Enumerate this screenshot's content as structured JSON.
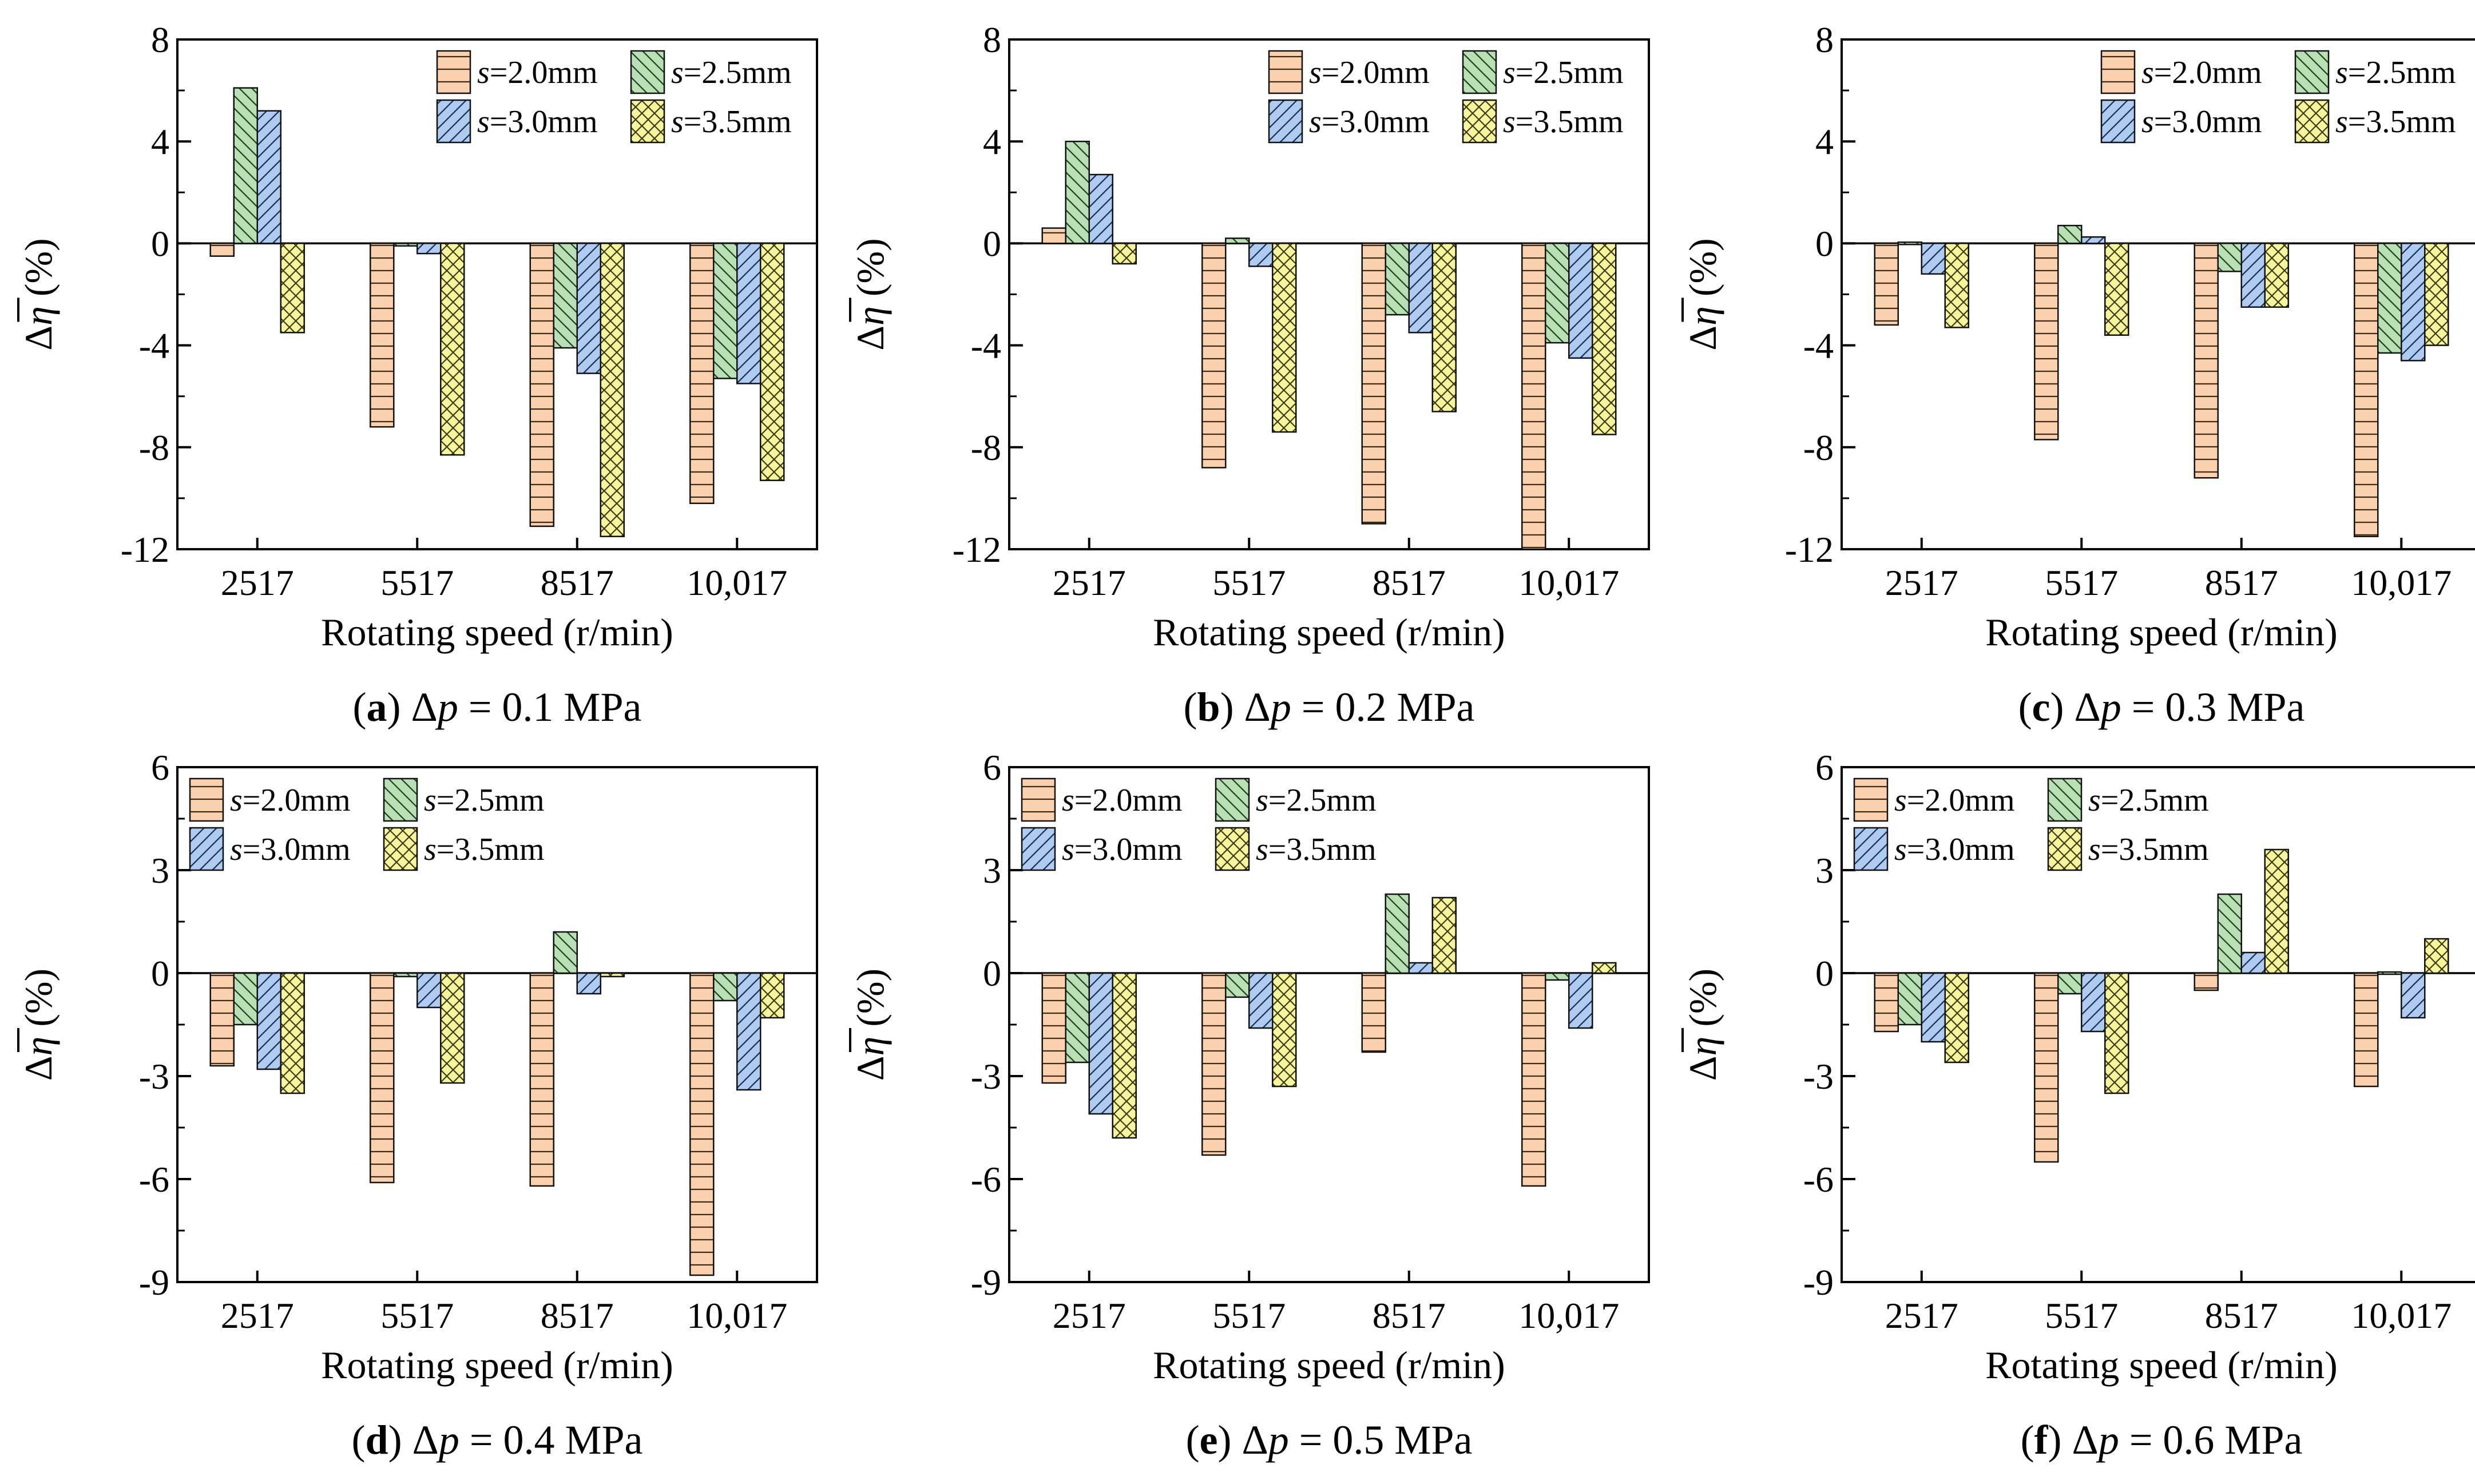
{
  "series_styles": [
    {
      "name": "s=2.0mm",
      "symbol": "s",
      "value": "=2.0mm",
      "color": "#FAD1AC",
      "pattern": "hlines",
      "pattern_color": "#3a2a1a"
    },
    {
      "name": "s=2.5mm",
      "symbol": "s",
      "value": "=2.5mm",
      "color": "#B8E0B4",
      "pattern": "diag",
      "pattern_color": "#1f3a1f"
    },
    {
      "name": "s=3.0mm",
      "symbol": "s",
      "value": "=3.0mm",
      "color": "#AECBF2",
      "pattern": "diag2",
      "pattern_color": "#1a2a4a"
    },
    {
      "name": "s=3.5mm",
      "symbol": "s",
      "value": "=3.5mm",
      "color": "#F7F59C",
      "pattern": "cross",
      "pattern_color": "#3a3a10"
    }
  ],
  "chart_data": [
    {
      "id": "a",
      "type": "bar",
      "caption": {
        "letter": "a",
        "delta": "Δ",
        "var": "p",
        "rest": " = 0.1 MPa"
      },
      "categories": [
        "2517",
        "5517",
        "8517",
        "10,017"
      ],
      "xlabel": "Rotating speed (r/min)",
      "ylabel": "Δη (%)",
      "ylim": [
        -12,
        8
      ],
      "yticks": [
        -12,
        -8,
        -4,
        0,
        4,
        8
      ],
      "yticklabels": [
        "-12",
        "-8",
        "-4",
        "0",
        "4",
        "8"
      ],
      "legend_position": "top-right",
      "series": [
        {
          "name": "s=2.0mm",
          "values": [
            -0.5,
            -7.2,
            -11.1,
            -10.2
          ]
        },
        {
          "name": "s=2.5mm",
          "values": [
            6.1,
            -0.1,
            -4.1,
            -5.3
          ]
        },
        {
          "name": "s=3.0mm",
          "values": [
            5.2,
            -0.4,
            -5.1,
            -5.5
          ]
        },
        {
          "name": "s=3.5mm",
          "values": [
            -3.5,
            -8.3,
            -11.5,
            -9.3
          ]
        }
      ]
    },
    {
      "id": "b",
      "type": "bar",
      "caption": {
        "letter": "b",
        "delta": "Δ",
        "var": "p",
        "rest": " = 0.2 MPa"
      },
      "categories": [
        "2517",
        "5517",
        "8517",
        "10,017"
      ],
      "xlabel": "Rotating speed (r/min)",
      "ylabel": "Δη (%)",
      "ylim": [
        -12,
        8
      ],
      "yticks": [
        -12,
        -8,
        -4,
        0,
        4,
        8
      ],
      "yticklabels": [
        "-12",
        "-8",
        "-4",
        "0",
        "4",
        "8"
      ],
      "legend_position": "top-right",
      "series": [
        {
          "name": "s=2.0mm",
          "values": [
            0.6,
            -8.8,
            -11.0,
            -12.0
          ]
        },
        {
          "name": "s=2.5mm",
          "values": [
            4.0,
            0.2,
            -2.8,
            -3.9
          ]
        },
        {
          "name": "s=3.0mm",
          "values": [
            2.7,
            -0.9,
            -3.5,
            -4.5
          ]
        },
        {
          "name": "s=3.5mm",
          "values": [
            -0.8,
            -7.4,
            -6.6,
            -7.5
          ]
        }
      ]
    },
    {
      "id": "c",
      "type": "bar",
      "caption": {
        "letter": "c",
        "delta": "Δ",
        "var": "p",
        "rest": " = 0.3 MPa"
      },
      "categories": [
        "2517",
        "5517",
        "8517",
        "10,017"
      ],
      "xlabel": "Rotating speed (r/min)",
      "ylabel": "Δη (%)",
      "ylim": [
        -12,
        8
      ],
      "yticks": [
        -12,
        -8,
        -4,
        0,
        4,
        8
      ],
      "yticklabels": [
        "-12",
        "-8",
        "-4",
        "0",
        "4",
        "8"
      ],
      "legend_position": "top-right",
      "series": [
        {
          "name": "s=2.0mm",
          "values": [
            -3.2,
            -7.7,
            -9.2,
            -11.5
          ]
        },
        {
          "name": "s=2.5mm",
          "values": [
            0.05,
            0.7,
            -1.1,
            -4.3
          ]
        },
        {
          "name": "s=3.0mm",
          "values": [
            -1.2,
            0.25,
            -2.5,
            -4.6
          ]
        },
        {
          "name": "s=3.5mm",
          "values": [
            -3.3,
            -3.6,
            -2.5,
            -4.0
          ]
        }
      ]
    },
    {
      "id": "d",
      "type": "bar",
      "caption": {
        "letter": "d",
        "delta": "Δ",
        "var": "p",
        "rest": " = 0.4 MPa"
      },
      "categories": [
        "2517",
        "5517",
        "8517",
        "10,017"
      ],
      "xlabel": "Rotating speed (r/min)",
      "ylabel": "Δη (%)",
      "ylim": [
        -9,
        6
      ],
      "yticks": [
        -9,
        -6,
        -3,
        0,
        3,
        6
      ],
      "yticklabels": [
        "-9",
        "-6",
        "-3",
        "0",
        "3",
        "6"
      ],
      "legend_position": "top-left",
      "series": [
        {
          "name": "s=2.0mm",
          "values": [
            -2.7,
            -6.1,
            -6.2,
            -8.8
          ]
        },
        {
          "name": "s=2.5mm",
          "values": [
            -1.5,
            -0.1,
            1.2,
            -0.8
          ]
        },
        {
          "name": "s=3.0mm",
          "values": [
            -2.8,
            -1.0,
            -0.6,
            -3.4
          ]
        },
        {
          "name": "s=3.5mm",
          "values": [
            -3.5,
            -3.2,
            -0.1,
            -1.3
          ]
        }
      ]
    },
    {
      "id": "e",
      "type": "bar",
      "caption": {
        "letter": "e",
        "delta": "Δ",
        "var": "p",
        "rest": " = 0.5 MPa"
      },
      "categories": [
        "2517",
        "5517",
        "8517",
        "10,017"
      ],
      "xlabel": "Rotating speed (r/min)",
      "ylabel": "Δη (%)",
      "ylim": [
        -9,
        6
      ],
      "yticks": [
        -9,
        -6,
        -3,
        0,
        3,
        6
      ],
      "yticklabels": [
        "-9",
        "-6",
        "-3",
        "0",
        "3",
        "6"
      ],
      "legend_position": "top-left",
      "series": [
        {
          "name": "s=2.0mm",
          "values": [
            -3.2,
            -5.3,
            -2.3,
            -6.2
          ]
        },
        {
          "name": "s=2.5mm",
          "values": [
            -2.6,
            -0.7,
            2.3,
            -0.2
          ]
        },
        {
          "name": "s=3.0mm",
          "values": [
            -4.1,
            -1.6,
            0.3,
            -1.6
          ]
        },
        {
          "name": "s=3.5mm",
          "values": [
            -4.8,
            -3.3,
            2.2,
            0.3
          ]
        }
      ]
    },
    {
      "id": "f",
      "type": "bar",
      "caption": {
        "letter": "f",
        "delta": "Δ",
        "var": "p",
        "rest": " = 0.6 MPa"
      },
      "categories": [
        "2517",
        "5517",
        "8517",
        "10,017"
      ],
      "xlabel": "Rotating speed (r/min)",
      "ylabel": "Δη (%)",
      "ylim": [
        -9,
        6
      ],
      "yticks": [
        -9,
        -6,
        -3,
        0,
        3,
        6
      ],
      "yticklabels": [
        "-9",
        "-6",
        "-3",
        "0",
        "3",
        "6"
      ],
      "legend_position": "top-left",
      "series": [
        {
          "name": "s=2.0mm",
          "values": [
            -1.7,
            -5.5,
            -0.5,
            -3.3
          ]
        },
        {
          "name": "s=2.5mm",
          "values": [
            -1.5,
            -0.6,
            2.3,
            0.0
          ]
        },
        {
          "name": "s=3.0mm",
          "values": [
            -2.0,
            -1.7,
            0.6,
            -1.3
          ]
        },
        {
          "name": "s=3.5mm",
          "values": [
            -2.6,
            -3.5,
            3.6,
            1.0
          ]
        }
      ]
    }
  ]
}
